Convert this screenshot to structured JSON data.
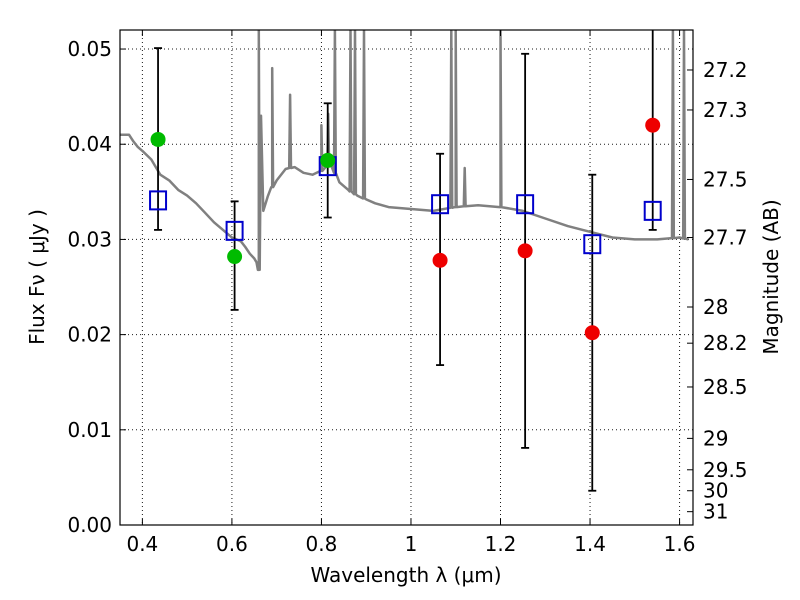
{
  "chart_data": {
    "type": "scatter",
    "title": "",
    "xlabel": "Wavelength  λ (μm)",
    "ylabel": "Flux  Fν  ( μJy )",
    "y2label": "Magnitude (AB)",
    "xlim": [
      0.35,
      1.63
    ],
    "ylim": [
      0.0,
      0.052
    ],
    "grid": true,
    "x_ticks": [
      0.4,
      0.6,
      0.8,
      1.0,
      1.2,
      1.4,
      1.6
    ],
    "x_tick_labels": [
      "0.4",
      "0.6",
      "0.8",
      "1",
      "1.2",
      "1.4",
      "1.6"
    ],
    "y_ticks": [
      0.0,
      0.01,
      0.02,
      0.03,
      0.04,
      0.05
    ],
    "y_tick_labels": [
      "0.00",
      "0.01",
      "0.02",
      "0.03",
      "0.04",
      "0.05"
    ],
    "y2_ticks": [
      {
        "label": "27.2",
        "flux": 0.0478
      },
      {
        "label": "27.3",
        "flux": 0.0436
      },
      {
        "label": "27.5",
        "flux": 0.0363
      },
      {
        "label": "27.7",
        "flux": 0.0302
      },
      {
        "label": "28",
        "flux": 0.0229
      },
      {
        "label": "28.2",
        "flux": 0.0191
      },
      {
        "label": "28.5",
        "flux": 0.0145
      },
      {
        "label": "29",
        "flux": 0.0091
      },
      {
        "label": "29.5",
        "flux": 0.0058
      },
      {
        "label": "30",
        "flux": 0.0036
      },
      {
        "label": "31",
        "flux": 0.0014
      }
    ],
    "series": [
      {
        "kind": "model_spectrum",
        "color": "#808080",
        "x": [
          0.35,
          0.37,
          0.38,
          0.39,
          0.4,
          0.42,
          0.44,
          0.46,
          0.48,
          0.5,
          0.52,
          0.54,
          0.56,
          0.58,
          0.6,
          0.62,
          0.63,
          0.64,
          0.65,
          0.655,
          0.66,
          0.665,
          0.67,
          0.68,
          0.69,
          0.7,
          0.72,
          0.74,
          0.76,
          0.78,
          0.8,
          0.82,
          0.84,
          0.86,
          0.88,
          0.9,
          0.92,
          0.95,
          1.0,
          1.05,
          1.1,
          1.15,
          1.2,
          1.25,
          1.3,
          1.35,
          1.4,
          1.45,
          1.5,
          1.55,
          1.6,
          1.62
        ],
        "y": [
          0.041,
          0.041,
          0.0403,
          0.0397,
          0.0393,
          0.0384,
          0.0368,
          0.0362,
          0.0352,
          0.0346,
          0.0338,
          0.0328,
          0.0318,
          0.031,
          0.0302,
          0.0298,
          0.0292,
          0.0285,
          0.028,
          0.0276,
          0.0268,
          0.043,
          0.033,
          0.0345,
          0.0355,
          0.0362,
          0.0374,
          0.0376,
          0.037,
          0.0368,
          0.0372,
          0.038,
          0.036,
          0.0352,
          0.0346,
          0.0342,
          0.0338,
          0.0334,
          0.0332,
          0.033,
          0.0334,
          0.0336,
          0.0334,
          0.033,
          0.0322,
          0.0314,
          0.0308,
          0.0302,
          0.03,
          0.03,
          0.0302,
          0.03
        ],
        "spikes": [
          {
            "x": 0.66,
            "y": 0.052
          },
          {
            "x": 0.69,
            "y": 0.048
          },
          {
            "x": 0.73,
            "y": 0.0452
          },
          {
            "x": 0.8,
            "y": 0.042
          },
          {
            "x": 0.815,
            "y": 0.0432
          },
          {
            "x": 0.83,
            "y": 0.052
          },
          {
            "x": 0.865,
            "y": 0.052
          },
          {
            "x": 0.875,
            "y": 0.052
          },
          {
            "x": 0.895,
            "y": 0.052
          },
          {
            "x": 1.09,
            "y": 0.052
          },
          {
            "x": 1.1,
            "y": 0.052
          },
          {
            "x": 1.12,
            "y": 0.0375
          },
          {
            "x": 1.2,
            "y": 0.052
          },
          {
            "x": 1.585,
            "y": 0.052
          },
          {
            "x": 1.61,
            "y": 0.052
          }
        ]
      },
      {
        "kind": "model_photometry",
        "marker": "square",
        "color": "#0000cc",
        "points": [
          {
            "x": 0.435,
            "y": 0.0341
          },
          {
            "x": 0.606,
            "y": 0.0309
          },
          {
            "x": 0.814,
            "y": 0.0377
          },
          {
            "x": 1.065,
            "y": 0.0337
          },
          {
            "x": 1.255,
            "y": 0.0337
          },
          {
            "x": 1.405,
            "y": 0.0295
          },
          {
            "x": 1.54,
            "y": 0.033
          }
        ]
      },
      {
        "kind": "detections",
        "marker": "circle",
        "color": "#00bb00",
        "points": [
          {
            "x": 0.435,
            "y": 0.0405,
            "yerr_low": 0.031,
            "yerr_high": 0.0501
          },
          {
            "x": 0.606,
            "y": 0.0282,
            "yerr_low": 0.0226,
            "yerr_high": 0.034
          },
          {
            "x": 0.814,
            "y": 0.0383,
            "yerr_low": 0.0323,
            "yerr_high": 0.0443
          }
        ]
      },
      {
        "kind": "low_significance",
        "marker": "circle",
        "color": "#ee0000",
        "points": [
          {
            "x": 1.065,
            "y": 0.0278,
            "yerr_low": 0.0168,
            "yerr_high": 0.039
          },
          {
            "x": 1.255,
            "y": 0.0288,
            "yerr_low": 0.0081,
            "yerr_high": 0.0495
          },
          {
            "x": 1.405,
            "y": 0.0202,
            "yerr_low": 0.0036,
            "yerr_high": 0.0368
          },
          {
            "x": 1.54,
            "y": 0.042,
            "yerr_low": 0.031,
            "yerr_high": 0.054
          }
        ]
      }
    ]
  }
}
